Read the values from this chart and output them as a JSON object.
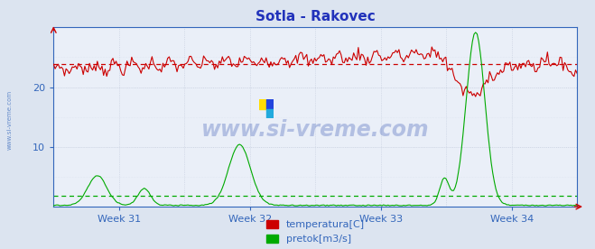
{
  "title": "Sotla - Rakovec",
  "title_color": "#2233bb",
  "bg_color": "#dce4f0",
  "plot_bg_color": "#eaeff8",
  "grid_color_minor": "#c8d0e0",
  "grid_color_major": "#b0bcd0",
  "label_color": "#3366bb",
  "axis_color": "#3366bb",
  "temp_color": "#cc0000",
  "flow_color": "#00aa00",
  "week_labels": [
    "Week 31",
    "Week 32",
    "Week 33",
    "Week 34"
  ],
  "ylim": [
    0,
    30
  ],
  "yticks": [
    10,
    20
  ],
  "watermark": "www.si-vreme.com",
  "watermark_color": "#2244aa",
  "watermark_alpha": 0.28,
  "legend_labels": [
    "temperatura[C]",
    "pretok[m3/s]"
  ],
  "legend_colors": [
    "#cc0000",
    "#00aa00"
  ],
  "temp_avg": 23.8,
  "flow_avg": 1.8,
  "n_points": 336,
  "side_label": "www.si-vreme.com",
  "side_label_color": "#3366bb",
  "side_label_alpha": 0.7
}
